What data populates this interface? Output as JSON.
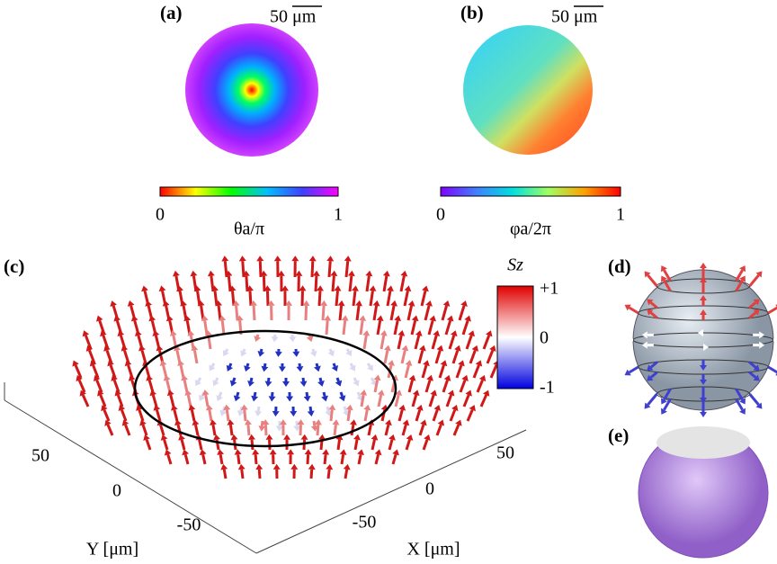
{
  "panels": {
    "a": {
      "label": "(a)",
      "scale_bar": "50 μm",
      "colorbar": {
        "min": "0",
        "max": "1",
        "label": "θa/π"
      }
    },
    "b": {
      "label": "(b)",
      "scale_bar": "50 μm",
      "colorbar": {
        "min": "0",
        "max": "1",
        "label": "φa/2π"
      }
    },
    "c": {
      "label": "(c)",
      "colorbar": {
        "label": "Sz",
        "max": "+1",
        "mid": "0",
        "min": "-1"
      },
      "y_axis": {
        "ticks": [
          "50",
          "0",
          "-50"
        ],
        "label": "Y [μm]"
      },
      "x_axis": {
        "ticks": [
          "50",
          "0",
          "-50"
        ],
        "label": "X [μm]"
      }
    },
    "d": {
      "label": "(d)"
    },
    "e": {
      "label": "(e)"
    }
  }
}
